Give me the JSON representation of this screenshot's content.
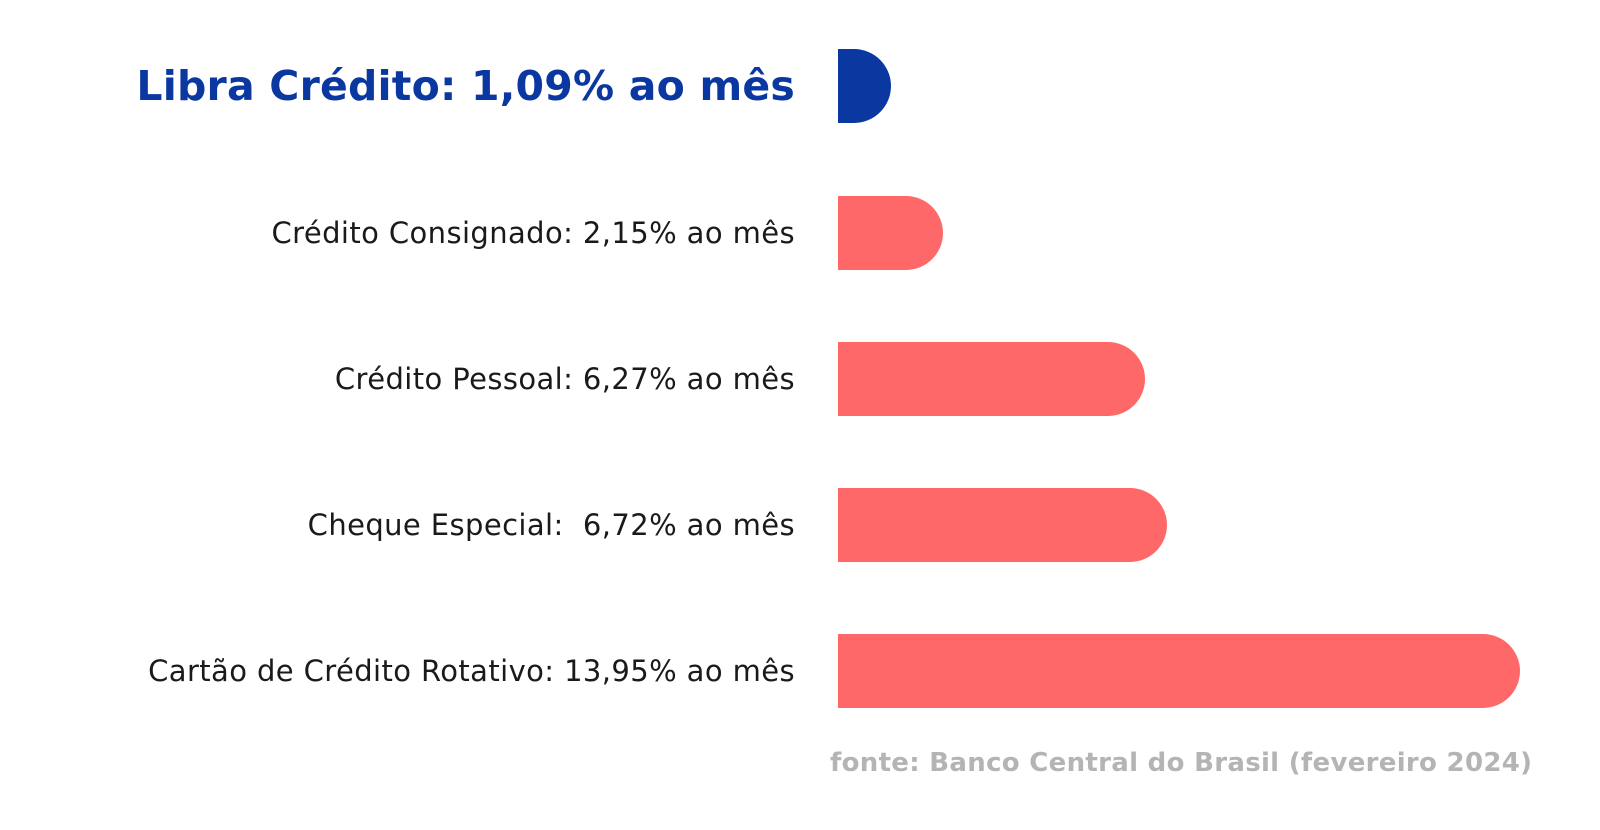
{
  "chart_data": {
    "type": "bar",
    "orientation": "horizontal",
    "categories": [
      "Libra Crédito: 1,09% ao mês",
      "Crédito Consignado: 2,15% ao mês",
      "Crédito Pessoal: 6,27% ao mês",
      "Cheque Especial:  6,72% ao mês",
      "Cartão de Crédito Rotativo: 13,95% ao mês"
    ],
    "values": [
      1.09,
      2.15,
      6.27,
      6.72,
      13.95
    ],
    "highlight_index": 0,
    "annotation": "fonte: Banco Central do Brasil (fevereiro 2024)",
    "xlim": [
      0,
      13.95
    ],
    "grid": false,
    "legend": "none"
  },
  "colors": {
    "highlight": "#0a37a0",
    "bar": "#ff6868",
    "label": "#1a1a1a",
    "source": "#b4b4b4"
  }
}
